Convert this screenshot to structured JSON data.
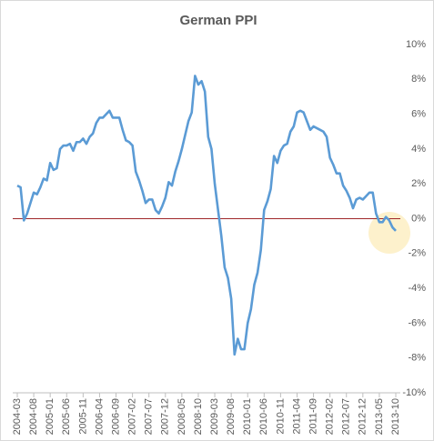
{
  "chart_data": {
    "type": "line",
    "title": "German PPI",
    "categories": [
      "2004-03",
      null,
      null,
      null,
      null,
      "2004-08",
      null,
      null,
      null,
      null,
      "2005-01",
      null,
      null,
      null,
      null,
      "2005-06",
      null,
      null,
      null,
      null,
      "2005-11",
      null,
      null,
      null,
      null,
      "2006-04",
      null,
      null,
      null,
      null,
      "2006-09",
      null,
      null,
      null,
      null,
      "2007-02",
      null,
      null,
      null,
      null,
      "2007-07",
      null,
      null,
      null,
      null,
      "2007-12",
      null,
      null,
      null,
      null,
      "2008-05",
      null,
      null,
      null,
      null,
      "2008-10",
      null,
      null,
      null,
      null,
      "2009-03",
      null,
      null,
      null,
      null,
      "2009-08",
      null,
      null,
      null,
      null,
      "2010-01",
      null,
      null,
      null,
      null,
      "2010-06",
      null,
      null,
      null,
      null,
      "2010-11",
      null,
      null,
      null,
      null,
      "2011-04",
      null,
      null,
      null,
      null,
      "2011-09",
      null,
      null,
      null,
      null,
      "2012-02",
      null,
      null,
      null,
      null,
      "2012-07",
      null,
      null,
      null,
      null,
      "2012-12",
      null,
      null,
      null,
      null,
      "2013-05",
      null,
      null,
      null,
      null,
      "2013-10"
    ],
    "series": [
      {
        "name": "German PPI",
        "color": "#5b9bd5",
        "values": [
          1.9,
          1.8,
          -0.1,
          0.3,
          0.9,
          1.5,
          1.4,
          1.8,
          2.3,
          2.2,
          3.2,
          2.8,
          2.9,
          4.0,
          4.2,
          4.2,
          4.3,
          3.9,
          4.4,
          4.4,
          4.6,
          4.3,
          4.7,
          4.9,
          5.5,
          5.8,
          5.8,
          6.0,
          6.2,
          5.8,
          5.8,
          5.8,
          5.1,
          4.5,
          4.4,
          4.2,
          2.7,
          2.2,
          1.6,
          0.9,
          1.1,
          1.1,
          0.5,
          0.3,
          0.7,
          1.2,
          2.1,
          1.9,
          2.7,
          3.3,
          4.0,
          4.8,
          5.6,
          6.1,
          8.2,
          7.7,
          7.9,
          7.3,
          4.7,
          4.0,
          2.0,
          0.5,
          -1.0,
          -2.8,
          -3.4,
          -4.6,
          -7.8,
          -6.9,
          -7.5,
          -7.5,
          -6.0,
          -5.2,
          -3.8,
          -3.1,
          -1.8,
          0.5,
          1.0,
          1.7,
          3.6,
          3.2,
          3.9,
          4.2,
          4.3,
          5.0,
          5.3,
          6.1,
          6.2,
          6.1,
          5.6,
          5.1,
          5.3,
          5.2,
          5.1,
          5.0,
          4.7,
          3.5,
          3.1,
          2.6,
          2.6,
          1.9,
          1.6,
          1.2,
          0.6,
          1.1,
          1.2,
          1.1,
          1.3,
          1.5,
          1.5,
          0.3,
          -0.2,
          -0.2,
          0.1,
          -0.1,
          -0.5,
          -0.7
        ]
      }
    ],
    "ylim": [
      -10,
      10
    ],
    "yticks": [
      {
        "value": -10,
        "label": "-10%"
      },
      {
        "value": -8,
        "label": "-8%"
      },
      {
        "value": -6,
        "label": "-6%"
      },
      {
        "value": -4,
        "label": "-4%"
      },
      {
        "value": -2,
        "label": "-2%"
      },
      {
        "value": 0,
        "label": "0%"
      },
      {
        "value": 2,
        "label": "2%"
      },
      {
        "value": 4,
        "label": "4%"
      },
      {
        "value": 6,
        "label": "6%"
      },
      {
        "value": 8,
        "label": "8%"
      },
      {
        "value": 10,
        "label": "10%"
      }
    ],
    "zero_line_color": "#a0282a",
    "grid": false
  }
}
